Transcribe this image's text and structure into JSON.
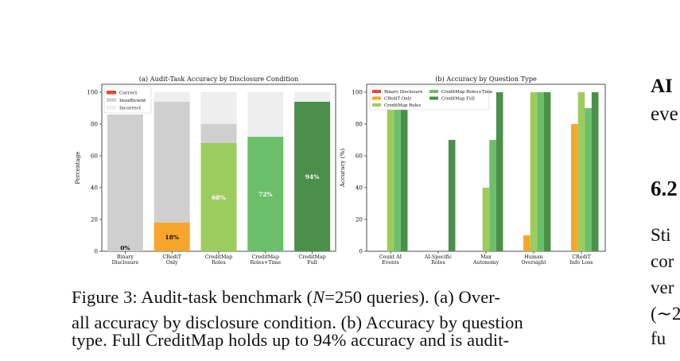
{
  "chart_data": [
    {
      "type": "bar",
      "title": "(a) Audit-Task Accuracy by Disclosure Condition",
      "ylabel": "Percentage",
      "ylim": [
        0,
        100
      ],
      "yticks": [
        "0",
        "20",
        "40",
        "60",
        "80",
        "100"
      ],
      "categories": [
        "Binary\nDisclosure",
        "CRediT\nOnly",
        "CreditMap\nRoles",
        "CreditMap\nRoles+Time",
        "CreditMap\nFull"
      ],
      "legend": {
        "position": "top-left",
        "entries": [
          "Correct",
          "Insufficient",
          "Incorrect"
        ]
      },
      "stacked": true,
      "series": [
        {
          "name": "Correct",
          "values": [
            0,
            18,
            68,
            72,
            94
          ]
        },
        {
          "name": "Insufficient",
          "values": [
            86,
            76,
            12,
            0,
            0
          ]
        },
        {
          "name": "Incorrect",
          "values": [
            0,
            6,
            20,
            28,
            6
          ]
        }
      ],
      "correct_colors": [
        "#e8443a",
        "#f7a52c",
        "#9ccc5e",
        "#6bbf6a",
        "#4b8f4b"
      ],
      "segment_colors": {
        "Insufficient": "#cfcfcf",
        "Incorrect": "#eeeeee"
      },
      "data_labels": [
        "0%",
        "18%",
        "68%",
        "72%",
        "94%"
      ]
    },
    {
      "type": "bar",
      "title": "(b) Accuracy by Question Type",
      "ylabel": "Accuracy (%)",
      "ylim": [
        0,
        105
      ],
      "yticks": [
        "0",
        "20",
        "40",
        "60",
        "80",
        "100"
      ],
      "categories": [
        "Count AI\nEvents",
        "AI-Specific\nRoles",
        "Max\nAutonomy",
        "Human\nOversight",
        "CRediT\nInfo Loss"
      ],
      "legend": {
        "position": "top-left",
        "columns": 2,
        "order": [
          "Binary Disclosure",
          "CRediT Only",
          "CreditMap Roles",
          "CreditMap Roles+Time",
          "CreditMap Full"
        ]
      },
      "series": [
        {
          "name": "Binary Disclosure",
          "color": "#e8443a",
          "values": [
            0,
            0,
            0,
            0,
            0
          ]
        },
        {
          "name": "CRediT Only",
          "color": "#f7a52c",
          "values": [
            0,
            0,
            0,
            10,
            80
          ]
        },
        {
          "name": "CreditMap Roles",
          "color": "#9ccc5e",
          "values": [
            100,
            0,
            40,
            100,
            100
          ]
        },
        {
          "name": "CreditMap Roles+Time",
          "color": "#6bbf6a",
          "values": [
            100,
            0,
            70,
            100,
            90
          ]
        },
        {
          "name": "CreditMap Full",
          "color": "#4b8f4b",
          "values": [
            100,
            70,
            100,
            100,
            100
          ]
        }
      ]
    }
  ],
  "caption": {
    "line1_a": "Figure 3:  Audit-task benchmark (",
    "line1_n": "N",
    "line1_eq": "=250 queries).  (a) Over-",
    "line2": "all accuracy by disclosure condition. (b) Accuracy by question",
    "line3": "type.  Full CreditMap holds up to 94% accuracy and is audit-"
  },
  "right_column": {
    "heading_start": "AI",
    "line_eve": "eve",
    "section_start": "6.2",
    "p1": "Sti",
    "p2": "cor",
    "p3": "ver",
    "p4": "(∼2",
    "p5": "fu"
  }
}
